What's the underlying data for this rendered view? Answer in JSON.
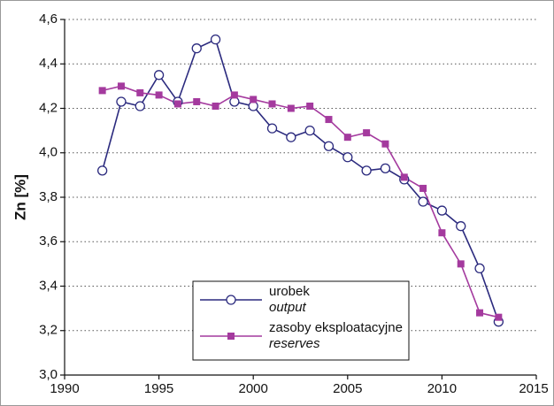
{
  "chart_data": {
    "type": "line",
    "y_label": "Zn [%]",
    "x": [
      1992,
      1993,
      1994,
      1995,
      1996,
      1997,
      1998,
      1999,
      2000,
      2001,
      2002,
      2003,
      2004,
      2005,
      2006,
      2007,
      2008,
      2009,
      2010,
      2011,
      2012,
      2013
    ],
    "series": [
      {
        "name": "urobek",
        "name_en": "output",
        "color": "#2b2a7e",
        "marker": "circle",
        "values": [
          3.92,
          4.23,
          4.21,
          4.35,
          4.23,
          4.47,
          4.51,
          4.23,
          4.21,
          4.11,
          4.07,
          4.1,
          4.03,
          3.98,
          3.92,
          3.93,
          3.88,
          3.78,
          3.74,
          3.67,
          3.48,
          3.24
        ]
      },
      {
        "name": "zasoby eksploatacyjne",
        "name_en": "reserves",
        "color": "#a43a9e",
        "marker": "square",
        "values": [
          4.28,
          4.3,
          4.27,
          4.26,
          4.22,
          4.23,
          4.21,
          4.26,
          4.24,
          4.22,
          4.2,
          4.21,
          4.15,
          4.07,
          4.09,
          4.04,
          3.89,
          3.84,
          3.64,
          3.5,
          3.28,
          3.26
        ]
      }
    ],
    "xlim": [
      1990,
      2015
    ],
    "xticks": [
      1990,
      1995,
      2000,
      2005,
      2010,
      2015
    ],
    "ylim": [
      3.0,
      4.6
    ],
    "yticks": [
      {
        "value": 3.0,
        "label": "3,0"
      },
      {
        "value": 3.2,
        "label": "3,2"
      },
      {
        "value": 3.4,
        "label": "3,4"
      },
      {
        "value": 3.6,
        "label": "3,6"
      },
      {
        "value": 3.8,
        "label": "3,8"
      },
      {
        "value": 4.0,
        "label": "4,0"
      },
      {
        "value": 4.2,
        "label": "4,2"
      },
      {
        "value": 4.4,
        "label": "4,4"
      },
      {
        "value": 4.6,
        "label": "4,6"
      }
    ],
    "grid": true
  }
}
